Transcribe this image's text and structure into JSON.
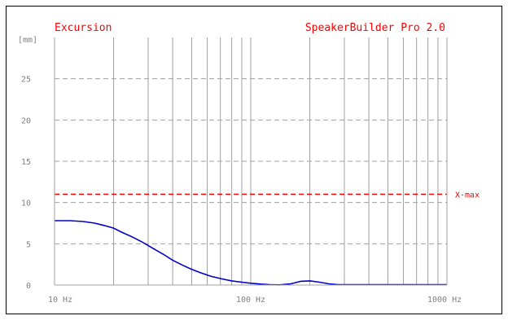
{
  "chart_data": {
    "type": "line",
    "title": "Excursion",
    "subtitle": "SpeakerBuilder Pro 2.0",
    "ylabel": "[mm]",
    "xlabel": "",
    "x_scale": "log",
    "xlim": [
      10,
      1000
    ],
    "ylim": [
      0,
      30
    ],
    "x_ticks": [
      {
        "value": 10,
        "label": "10 Hz"
      },
      {
        "value": 100,
        "label": "100 Hz"
      },
      {
        "value": 1000,
        "label": "1000 Hz"
      }
    ],
    "y_ticks": [
      {
        "value": 0,
        "label": "0"
      },
      {
        "value": 5,
        "label": "5"
      },
      {
        "value": 10,
        "label": "10"
      },
      {
        "value": 15,
        "label": "15"
      },
      {
        "value": 20,
        "label": "20"
      },
      {
        "value": 25,
        "label": "25"
      }
    ],
    "grid": true,
    "series": [
      {
        "color": "#0000cc",
        "x": [
          10,
          12,
          14,
          16,
          18,
          20,
          22,
          25,
          28,
          32,
          36,
          40,
          45,
          50,
          56,
          63,
          71,
          80,
          90,
          100,
          112,
          125,
          140,
          160,
          180,
          200,
          224,
          250,
          280,
          320,
          400,
          500,
          630,
          800,
          1000
        ],
        "y": [
          7.8,
          7.8,
          7.7,
          7.5,
          7.2,
          6.9,
          6.4,
          5.8,
          5.2,
          4.4,
          3.7,
          3.0,
          2.4,
          1.9,
          1.45,
          1.05,
          0.75,
          0.5,
          0.35,
          0.22,
          0.12,
          0.05,
          0.02,
          0.15,
          0.45,
          0.5,
          0.35,
          0.15,
          0.05,
          0.05,
          0.05,
          0.05,
          0.05,
          0.05,
          0.05
        ]
      }
    ],
    "annotations": [
      {
        "label": "X-max",
        "y": 11,
        "color": "#ff0000",
        "style": "dashed"
      }
    ]
  },
  "colors": {
    "title": "#ff0000",
    "axis_text": "#808080",
    "grid": "#a0a0a0",
    "frame": "#000000"
  }
}
